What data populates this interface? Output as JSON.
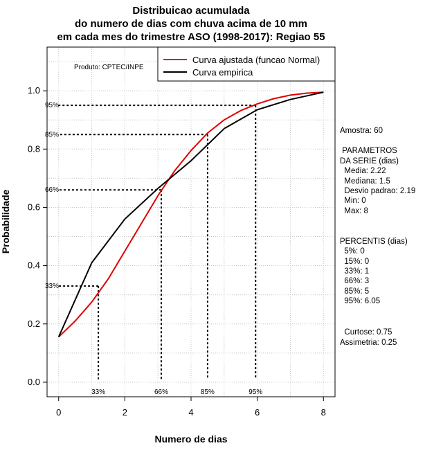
{
  "chart_data": {
    "type": "line",
    "title": [
      "Distribuicao acumulada",
      "do numero de dias com chuva acima de 10 mm",
      "em cada mes do trimestre ASO (1998-2017): Regiao 55"
    ],
    "xlabel": "Numero de dias",
    "ylabel": "Probabilidade",
    "xlim": [
      -0.35,
      8.35
    ],
    "ylim": [
      -0.05,
      1.15
    ],
    "xticks": [
      "0",
      "2",
      "4",
      "6",
      "8"
    ],
    "xtick_values": [
      0,
      2,
      4,
      6,
      8
    ],
    "yticks": [
      "0.0",
      "0.2",
      "0.4",
      "0.6",
      "0.8",
      "1.0"
    ],
    "ytick_values": [
      0.0,
      0.2,
      0.4,
      0.6,
      0.8,
      1.0
    ],
    "grid": true,
    "producer": "Produto: CPTEC/INPE",
    "legend": {
      "position": "top-right",
      "entries": [
        {
          "label": "Curva ajustada (funcao Normal)",
          "color": "#dd0000"
        },
        {
          "label": "Curva empirica",
          "color": "#000000"
        }
      ]
    },
    "series": [
      {
        "name": "Curva ajustada (funcao Normal)",
        "color": "#dd0000",
        "x": [
          0,
          0.5,
          1,
          1.5,
          2,
          2.5,
          3,
          3.5,
          4,
          4.5,
          5,
          5.5,
          6,
          6.5,
          7,
          7.5,
          8
        ],
        "y": [
          0.155,
          0.21,
          0.275,
          0.355,
          0.45,
          0.545,
          0.64,
          0.725,
          0.795,
          0.855,
          0.9,
          0.932,
          0.955,
          0.973,
          0.985,
          0.992,
          0.995
        ]
      },
      {
        "name": "Curva empirica",
        "color": "#000000",
        "x": [
          0,
          1,
          2,
          3,
          4,
          5,
          6,
          7,
          8
        ],
        "y": [
          0.155,
          0.41,
          0.56,
          0.665,
          0.76,
          0.87,
          0.935,
          0.97,
          0.995
        ]
      }
    ],
    "percentile_lines": [
      {
        "label": "33%",
        "x": 1.2,
        "y": 0.33
      },
      {
        "label": "66%",
        "x": 3.1,
        "y": 0.66
      },
      {
        "label": "85%",
        "x": 4.5,
        "y": 0.85
      },
      {
        "label": "95%",
        "x": 5.95,
        "y": 0.95
      }
    ],
    "info_text": [
      "Amostra: 60",
      " PARAMETROS",
      "DA SERIE (dias)",
      "  Media: 2.22",
      "  Mediana: 1.5",
      "  Desvio padrao: 2.19",
      "  Min: 0",
      "  Max: 8",
      "PERCENTIS (dias)",
      "  5%: 0",
      "  15%: 0",
      "  33%: 1",
      "  66%: 3",
      "  85%: 5",
      "  95%: 6.05",
      "  Curtose: 0.75",
      "Assimetria: 0.25"
    ]
  }
}
